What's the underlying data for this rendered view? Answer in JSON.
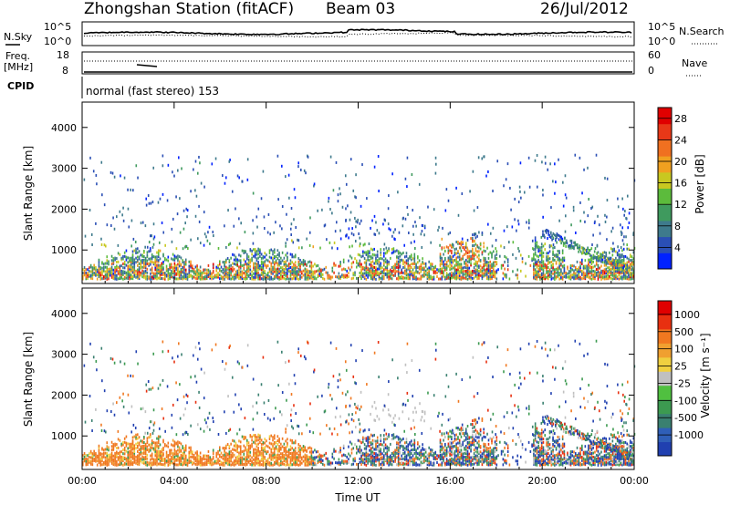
{
  "header": {
    "station": "Zhongshan Station (fitACF)",
    "beam": "Beam 03",
    "date": "26/Jul/2012"
  },
  "top_panels": {
    "nsky_label": "N.Sky",
    "nsearch_label": "N.Search",
    "nsky_ticks": [
      "10^5",
      "10^0"
    ],
    "nsearch_ticks": [
      "10^5",
      "10^0"
    ],
    "freq_label_line1": "Freq.",
    "freq_label_line2": "[MHz]",
    "freq_ticks": [
      "18",
      "8"
    ],
    "nave_label": "Nave",
    "nave_ticks": [
      "60",
      "0"
    ],
    "cpid_label": "CPID",
    "cpid_text": "normal (fast stereo) 153"
  },
  "chart_data": [
    {
      "type": "heatmap",
      "title": "",
      "xlabel": "Time UT",
      "ylabel": "Slant Range [km]",
      "x_ticks": [
        "00:00",
        "04:00",
        "08:00",
        "12:00",
        "16:00",
        "20:00",
        "00:00"
      ],
      "xlim_hours": [
        0,
        24
      ],
      "y_ticks": [
        1000,
        2000,
        3000,
        4000
      ],
      "ylim": [
        180,
        4620
      ],
      "colorbar": {
        "label": "Power [dB]",
        "ticks": [
          "4",
          "8",
          "12",
          "16",
          "20",
          "24",
          "28"
        ],
        "range": [
          0,
          30
        ],
        "colors": [
          "#0022ff",
          "#2a4fb5",
          "#3e7a8c",
          "#3f9a5e",
          "#5cbb3c",
          "#c8c820",
          "#f0a020",
          "#f07020",
          "#e83818",
          "#e00000"
        ]
      }
    },
    {
      "type": "heatmap",
      "title": "",
      "xlabel": "Time UT",
      "ylabel": "Slant Range [km]",
      "x_ticks": [
        "00:00",
        "04:00",
        "08:00",
        "12:00",
        "16:00",
        "20:00",
        "00:00"
      ],
      "xlim_hours": [
        0,
        24
      ],
      "y_ticks": [
        1000,
        2000,
        3000,
        4000
      ],
      "ylim": [
        180,
        4620
      ],
      "colorbar": {
        "label": "Velocity [m s⁻¹]",
        "ticks": [
          "1000",
          "500",
          "100",
          "25",
          "-25",
          "-100",
          "-500",
          "-1000"
        ],
        "colors": [
          "#2040b0",
          "#2f5fb8",
          "#3a8070",
          "#3c9a50",
          "#50c040",
          "#c0c0c0",
          "#f0d040",
          "#f0a030",
          "#f07820",
          "#e83010",
          "#e00000"
        ]
      }
    }
  ],
  "footer": {
    "xlabel": "Time UT"
  }
}
